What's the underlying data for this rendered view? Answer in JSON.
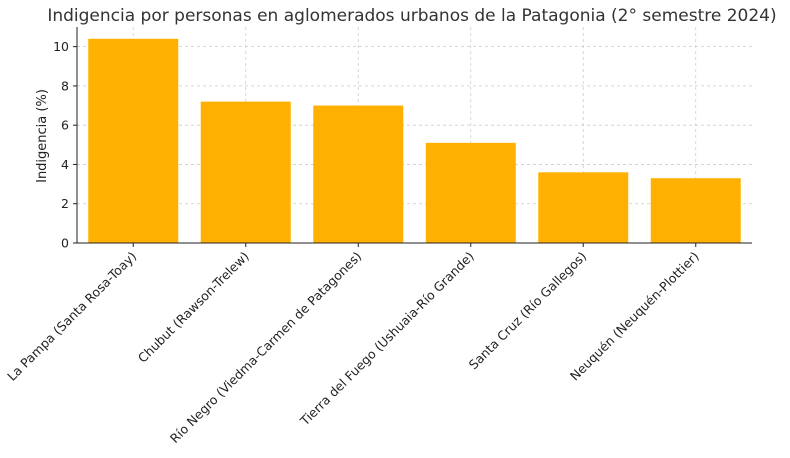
{
  "chart_data": {
    "type": "bar",
    "title": "Indigencia por personas en aglomerados urbanos de la Patagonia (2° semestre 2024)",
    "xlabel": "",
    "ylabel": "Indigencia (%)",
    "categories": [
      "La Pampa (Santa Rosa-Toay)",
      "Chubut (Rawson-Trelew)",
      "Río Negro (Viedma-Carmen de Patagones)",
      "Tierra del Fuego (Ushuaia-Río Grande)",
      "Santa Cruz (Río Gallegos)",
      "Neuquén (Neuquén-Plottier)"
    ],
    "values": [
      10.4,
      7.2,
      7.0,
      5.1,
      3.6,
      3.3
    ],
    "ylim": [
      0,
      11
    ],
    "yticks": [
      0,
      2,
      4,
      6,
      8,
      10
    ],
    "grid": true,
    "bar_color": "#FFB000"
  }
}
